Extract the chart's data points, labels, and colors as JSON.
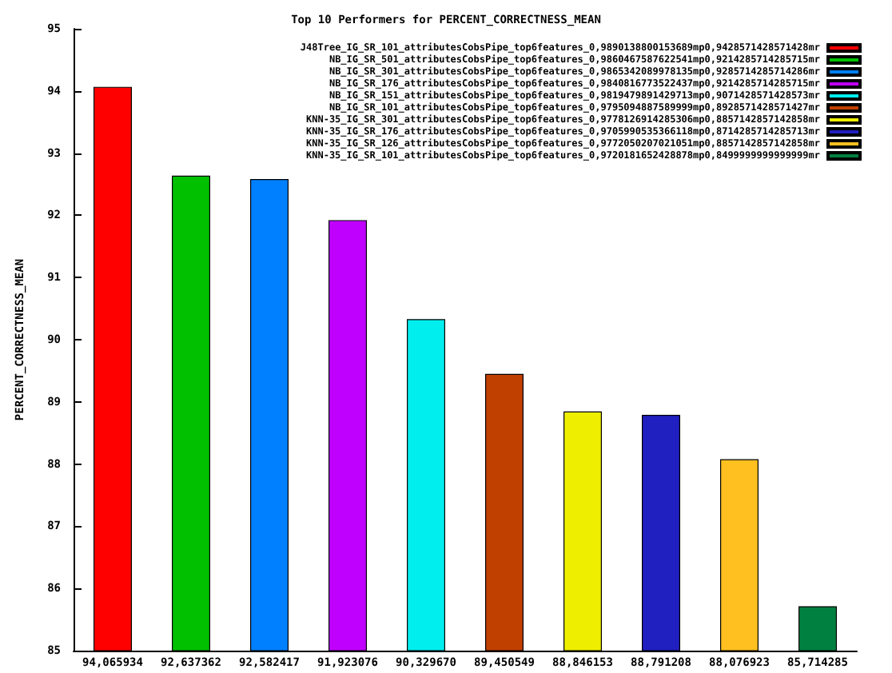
{
  "chart_data": {
    "type": "bar",
    "title": "Top 10 Performers for PERCENT_CORRECTNESS_MEAN",
    "ylabel": "PERCENT_CORRECTNESS_MEAN",
    "categories": [
      "94,065934",
      "92,637362",
      "92,582417",
      "91,923076",
      "90,329670",
      "89,450549",
      "88,846153",
      "88,791208",
      "88,076923",
      "85,714285"
    ],
    "stacked": true,
    "series": [
      {
        "name": "J48Tree_IG_SR_101_attributesCobsPipe_top6features_0,9890138800153689mp0,9428571428571428mr",
        "color": "#ff0000",
        "values": [
          94.065934,
          null,
          null,
          null,
          null,
          null,
          null,
          null,
          null,
          null
        ]
      },
      {
        "name": "NB_IG_SR_501_attributesCobsPipe_top6features_0,9860467587622541mp0,9214285714285715mr",
        "color": "#00c000",
        "values": [
          null,
          92.637362,
          null,
          null,
          null,
          null,
          null,
          null,
          null,
          null
        ]
      },
      {
        "name": "NB_IG_SR_301_attributesCobsPipe_top6features_0,9865342089978135mp0,9285714285714286mr",
        "color": "#0080ff",
        "values": [
          null,
          null,
          92.582417,
          null,
          null,
          null,
          null,
          null,
          null,
          null
        ]
      },
      {
        "name": "NB_IG_SR_176_attributesCobsPipe_top6features_0,9840816773522437mp0,9214285714285715mr",
        "color": "#c000ff",
        "values": [
          null,
          null,
          null,
          91.923076,
          null,
          null,
          null,
          null,
          null,
          null
        ]
      },
      {
        "name": "NB_IG_SR_151_attributesCobsPipe_top6features_0,9819479891429713mp0,9071428571428573mr",
        "color": "#00eeee",
        "values": [
          null,
          null,
          null,
          null,
          90.32967,
          null,
          null,
          null,
          null,
          null
        ]
      },
      {
        "name": "NB_IG_SR_101_attributesCobsPipe_top6features_0,9795094887589999mp0,8928571428571427mr",
        "color": "#c04000",
        "values": [
          null,
          null,
          null,
          null,
          null,
          89.450549,
          null,
          null,
          null,
          null
        ]
      },
      {
        "name": "KNN-35_IG_SR_301_attributesCobsPipe_top6features_0,9778126914285306mp0,8857142857142858mr",
        "color": "#eeee00",
        "values": [
          null,
          null,
          null,
          null,
          null,
          null,
          88.846153,
          null,
          null,
          null
        ]
      },
      {
        "name": "KNN-35_IG_SR_176_attributesCobsPipe_top6features_0,9705990535366118mp0,8714285714285713mr",
        "color": "#2020c0",
        "values": [
          null,
          null,
          null,
          null,
          null,
          null,
          null,
          88.791208,
          null,
          null
        ]
      },
      {
        "name": "KNN-35_IG_SR_126_attributesCobsPipe_top6features_0,9772050207021051mp0,8857142857142858mr",
        "color": "#ffc020",
        "values": [
          null,
          null,
          null,
          null,
          null,
          null,
          null,
          null,
          88.076923,
          null
        ]
      },
      {
        "name": "KNN-35_IG_SR_101_attributesCobsPipe_top6features_0,9720181652428878mp0,8499999999999999mr",
        "color": "#008040",
        "values": [
          null,
          null,
          null,
          null,
          null,
          null,
          null,
          null,
          null,
          85.714285
        ]
      }
    ],
    "ylim": [
      85,
      95
    ],
    "yticks": [
      85,
      86,
      87,
      88,
      89,
      90,
      91,
      92,
      93,
      94,
      95
    ],
    "grid": false,
    "legend": "top right"
  }
}
